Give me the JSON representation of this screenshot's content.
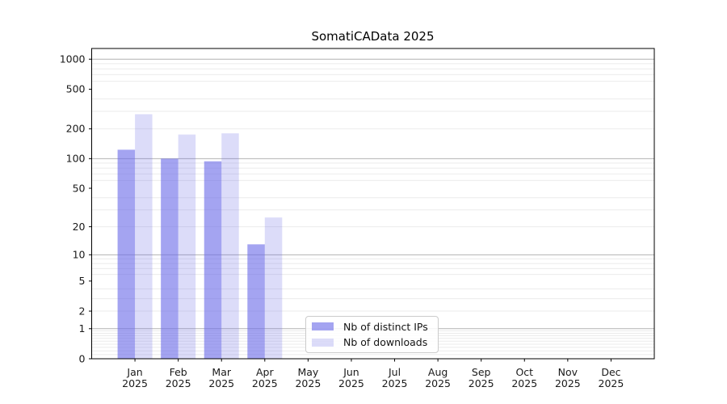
{
  "chart_data": {
    "type": "bar",
    "title": "SomatiCAData 2025",
    "categories": [
      "Jan 2025",
      "Feb 2025",
      "Mar 2025",
      "Apr 2025",
      "May 2025",
      "Jun 2025",
      "Jul 2025",
      "Aug 2025",
      "Sep 2025",
      "Oct 2025",
      "Nov 2025",
      "Dec 2025"
    ],
    "series": [
      {
        "name": "Nb of distinct IPs",
        "color": "rgba(108,108,232,0.62)",
        "values": [
          123,
          100,
          94,
          13,
          0,
          0,
          0,
          0,
          0,
          0,
          0,
          0
        ]
      },
      {
        "name": "Nb of downloads",
        "color": "rgba(108,108,232,0.24)",
        "values": [
          280,
          175,
          180,
          25,
          0,
          0,
          0,
          0,
          0,
          0,
          0,
          0
        ]
      }
    ],
    "xlabel": "",
    "ylabel": "",
    "yscale": "log1p",
    "ylim": [
      0,
      1280
    ],
    "yticks": [
      1000,
      500,
      200,
      100,
      50,
      20,
      10,
      5,
      2,
      1,
      0
    ],
    "grid": {
      "major": [
        1,
        10,
        100,
        1000
      ],
      "minor": [
        0.1,
        0.2,
        0.3,
        0.4,
        0.5,
        0.6,
        0.7,
        0.8,
        0.9,
        2,
        3,
        4,
        6,
        7,
        8,
        9,
        20,
        30,
        40,
        60,
        70,
        80,
        90,
        200,
        300,
        400,
        600,
        700,
        800,
        900
      ],
      "major_color": "#b2b2b2",
      "minor_color": "#ebebeb"
    },
    "axis_color": "#000000",
    "text_color": "#1a1a1a",
    "legend_position": "lower center"
  }
}
